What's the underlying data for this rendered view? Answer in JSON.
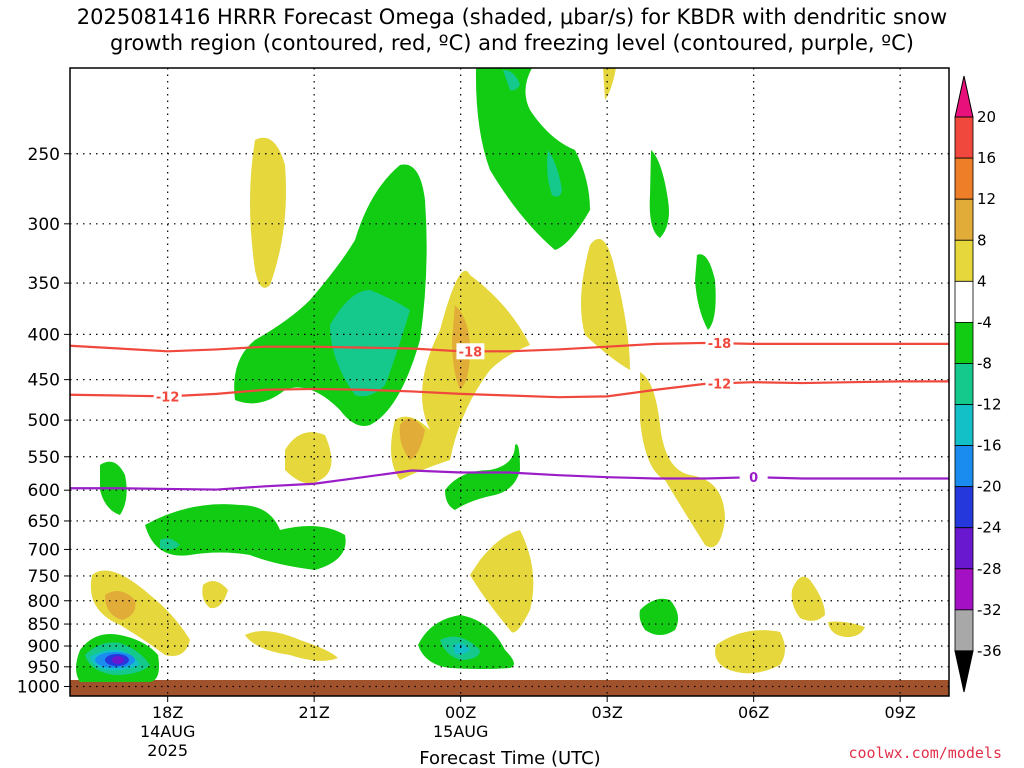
{
  "title": "2025081416 HRRR Forecast Omega (shaded, μbar/s) for KBDR with dendritic snow\ngrowth region (contoured, red, ºC) and freezing level (contoured, purple, ºC)",
  "credit": "coolwx.com/models",
  "chart_data": {
    "type": "heatmap",
    "title": "2025081416 HRRR Forecast Omega (shaded, μbar/s) for KBDR with dendritic snow growth region (contoured, red, ºC) and freezing level (contoured, purple, ºC)",
    "xlabel": "Forecast Time (UTC)",
    "ylabel": "",
    "x_range_hours": [
      16,
      34
    ],
    "x_ticks": [
      {
        "hour": 18,
        "lines": [
          "18Z",
          "14AUG",
          "2025"
        ]
      },
      {
        "hour": 21,
        "lines": [
          "21Z"
        ]
      },
      {
        "hour": 24,
        "lines": [
          "00Z",
          "15AUG"
        ]
      },
      {
        "hour": 27,
        "lines": [
          "03Z"
        ]
      },
      {
        "hour": 30,
        "lines": [
          "06Z"
        ]
      },
      {
        "hour": 33,
        "lines": [
          "09Z"
        ]
      }
    ],
    "y_axis": "pressure (hPa), reversed, log scale",
    "y_range": [
      1025,
      200
    ],
    "y_ticks": [
      250,
      300,
      350,
      400,
      450,
      500,
      550,
      600,
      650,
      700,
      750,
      800,
      850,
      900,
      950,
      1000
    ],
    "grid": true,
    "colorbar": {
      "labels": [
        "20",
        "16",
        "12",
        "8",
        "4",
        "-4",
        "-8",
        "-12",
        "-16",
        "-20",
        "-24",
        "-28",
        "-32",
        "-36"
      ],
      "bins": [
        {
          "range": "> 20",
          "color": "#e8107a"
        },
        {
          "range": "16 to 20",
          "color": "#f0483c"
        },
        {
          "range": "12 to 16",
          "color": "#ee7f28"
        },
        {
          "range": "8 to 12",
          "color": "#e2ac38"
        },
        {
          "range": "4 to 8",
          "color": "#e5d73c"
        },
        {
          "range": "-4 to 4",
          "color": "#ffffff"
        },
        {
          "range": "-8 to -4",
          "color": "#12cc14"
        },
        {
          "range": "-12 to -8",
          "color": "#15c88c"
        },
        {
          "range": "-16 to -12",
          "color": "#13c0c8"
        },
        {
          "range": "-20 to -16",
          "color": "#1a8cf0"
        },
        {
          "range": "-24 to -20",
          "color": "#2438dc"
        },
        {
          "range": "-28 to -24",
          "color": "#6a18d0"
        },
        {
          "range": "-32 to -28",
          "color": "#a410c4"
        },
        {
          "range": "-36 to -32",
          "color": "#a8a8a8"
        },
        {
          "range": "< -36",
          "color": "#000000"
        }
      ]
    },
    "contours": [
      {
        "label": "-18",
        "color": "#f0483c",
        "label_hours": [
          24.2,
          29.3
        ],
        "points": [
          [
            16,
            412
          ],
          [
            17,
            415
          ],
          [
            18,
            418
          ],
          [
            19,
            416
          ],
          [
            20,
            413
          ],
          [
            21,
            413
          ],
          [
            22,
            414
          ],
          [
            23,
            415
          ],
          [
            24,
            418
          ],
          [
            25,
            418
          ],
          [
            26,
            416
          ],
          [
            27,
            413
          ],
          [
            28,
            410
          ],
          [
            29,
            409
          ],
          [
            30,
            410
          ],
          [
            31,
            410
          ],
          [
            32,
            410
          ],
          [
            33,
            410
          ],
          [
            34,
            410
          ]
        ]
      },
      {
        "label": "-12",
        "color": "#f0483c",
        "label_hours": [
          18,
          29.3
        ],
        "points": [
          [
            16,
            468
          ],
          [
            17,
            469
          ],
          [
            18,
            470
          ],
          [
            19,
            467
          ],
          [
            20,
            462
          ],
          [
            21,
            461
          ],
          [
            22,
            462
          ],
          [
            23,
            464
          ],
          [
            24,
            467
          ],
          [
            25,
            469
          ],
          [
            26,
            471
          ],
          [
            27,
            470
          ],
          [
            28,
            462
          ],
          [
            29,
            455
          ],
          [
            30,
            453
          ],
          [
            31,
            454
          ],
          [
            32,
            453
          ],
          [
            33,
            452
          ],
          [
            34,
            452
          ]
        ]
      },
      {
        "label": "0",
        "color": "#9a1ec8",
        "label_hours": [
          30
        ],
        "points": [
          [
            16,
            597
          ],
          [
            17,
            597
          ],
          [
            18,
            598
          ],
          [
            19,
            599
          ],
          [
            20,
            594
          ],
          [
            21,
            590
          ],
          [
            22,
            580
          ],
          [
            23,
            570
          ],
          [
            24,
            573
          ],
          [
            25,
            573
          ],
          [
            26,
            577
          ],
          [
            27,
            580
          ],
          [
            28,
            582
          ],
          [
            29,
            582
          ],
          [
            30,
            580
          ],
          [
            31,
            582
          ],
          [
            32,
            582
          ],
          [
            33,
            582
          ],
          [
            34,
            582
          ]
        ]
      }
    ],
    "surface_color": "#a0522d",
    "colors": {
      "frame": "#000000",
      "grid": "#000000"
    }
  }
}
